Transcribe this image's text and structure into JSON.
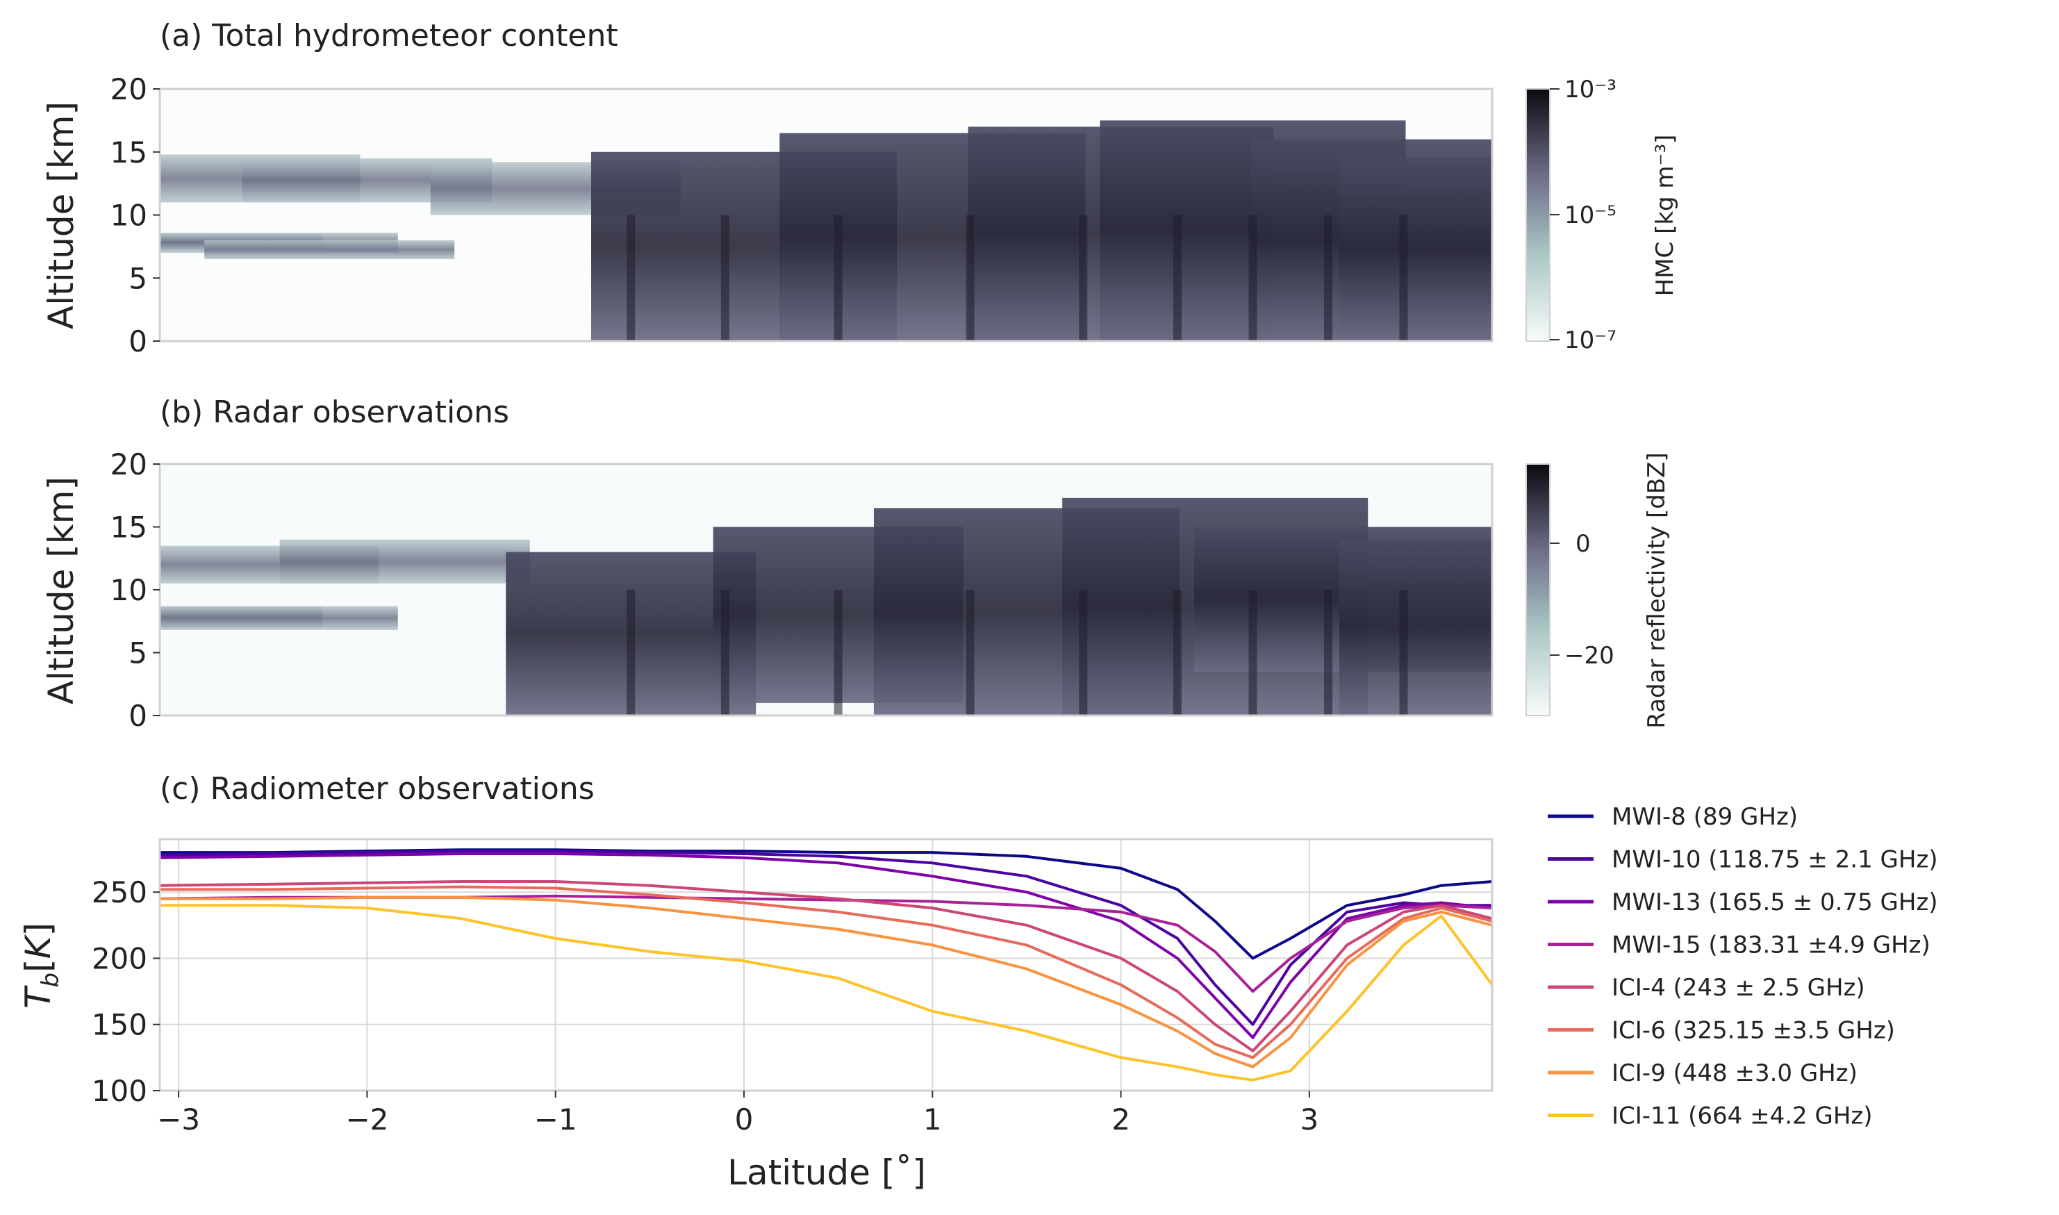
{
  "chart_data": [
    {
      "type": "heatmap",
      "title": "(a) Total hydrometeor content",
      "ylabel": "Altitude [km]",
      "ylim": [
        0,
        20
      ],
      "yticks": [
        "0",
        "5",
        "10",
        "15",
        "20"
      ],
      "xlim": [
        -3.1,
        3.97
      ],
      "colorbar": {
        "label": "HMC [kg m⁻³]",
        "ticks": [
          "10⁻³",
          "10⁻⁵",
          "10⁻⁷"
        ],
        "scale": "log",
        "colormap": "bone_r"
      },
      "cloud_profile": [
        {
          "lat": -2.9,
          "bottom": 7.3,
          "top": 8.5
        },
        {
          "lat": -2.5,
          "bottom": 7.0,
          "top": 8.6
        },
        {
          "lat": -2.2,
          "bottom": 6.5,
          "top": 8.0
        },
        {
          "lat": -2.7,
          "bottom": 11.0,
          "top": 14.8
        },
        {
          "lat": -2.0,
          "bottom": 11.0,
          "top": 14.5
        },
        {
          "lat": -1.0,
          "bottom": 10.0,
          "top": 14.2
        },
        {
          "lat": 0.0,
          "bottom": 0.0,
          "top": 15.0
        },
        {
          "lat": 1.0,
          "bottom": 0.0,
          "top": 16.5
        },
        {
          "lat": 2.0,
          "bottom": 0.0,
          "top": 17.0
        },
        {
          "lat": 2.7,
          "bottom": 0.0,
          "top": 17.5
        },
        {
          "lat": 3.5,
          "bottom": 0.0,
          "top": 16.0
        },
        {
          "lat": 3.97,
          "bottom": 0.0,
          "top": 14.5
        }
      ]
    },
    {
      "type": "heatmap",
      "title": "(b) Radar observations",
      "ylabel": "Altitude [km]",
      "ylim": [
        0,
        20
      ],
      "yticks": [
        "0",
        "5",
        "10",
        "15",
        "20"
      ],
      "xlim": [
        -3.1,
        3.97
      ],
      "colorbar": {
        "label": "Radar reflectivity [dBZ]",
        "ticks": [
          "0",
          "−20"
        ],
        "range": [
          -30,
          15
        ],
        "colormap": "bone_r"
      },
      "reflectivity_profile": [
        {
          "lat": -2.9,
          "bottom": 7.0,
          "top": 8.7
        },
        {
          "lat": -2.5,
          "bottom": 6.8,
          "top": 8.7
        },
        {
          "lat": -2.6,
          "bottom": 10.5,
          "top": 13.5
        },
        {
          "lat": -1.8,
          "bottom": 10.5,
          "top": 14.0
        },
        {
          "lat": -0.6,
          "bottom": 0.0,
          "top": 13.0
        },
        {
          "lat": 0.5,
          "bottom": 1.0,
          "top": 15.0
        },
        {
          "lat": 1.5,
          "bottom": 0.0,
          "top": 16.5
        },
        {
          "lat": 2.5,
          "bottom": 0.0,
          "top": 17.3
        },
        {
          "lat": 3.2,
          "bottom": 3.5,
          "top": 15.0
        },
        {
          "lat": 3.97,
          "bottom": 0.0,
          "top": 14.0
        }
      ]
    },
    {
      "type": "line",
      "title": "(c) Radiometer observations",
      "xlabel": "Latitude [˚]",
      "ylabel": "T_b[K]",
      "xlim": [
        -3.1,
        3.97
      ],
      "ylim": [
        100,
        290
      ],
      "xticks": [
        "−3",
        "−2",
        "−1",
        "0",
        "1",
        "2",
        "3"
      ],
      "yticks": [
        "100",
        "150",
        "200",
        "250"
      ],
      "grid": true,
      "legend_position": "right",
      "x": [
        -3.1,
        -2.5,
        -2.0,
        -1.5,
        -1.0,
        -0.5,
        0.0,
        0.5,
        1.0,
        1.5,
        2.0,
        2.3,
        2.5,
        2.7,
        2.9,
        3.2,
        3.5,
        3.7,
        3.97
      ],
      "series": [
        {
          "name": "MWI-8 (89 GHz)",
          "color": "#0d0887",
          "values": [
            280,
            280,
            281,
            282,
            282,
            281,
            281,
            280,
            280,
            277,
            268,
            252,
            228,
            200,
            215,
            240,
            248,
            255,
            258
          ]
        },
        {
          "name": "MWI-10 (118.75 ± 2.1 GHz)",
          "color": "#4b03a1",
          "values": [
            278,
            279,
            280,
            281,
            281,
            280,
            279,
            277,
            272,
            262,
            240,
            215,
            180,
            150,
            195,
            235,
            242,
            240,
            240
          ]
        },
        {
          "name": "MWI-13 (165.5 ± 0.75 GHz)",
          "color": "#7d03a8",
          "values": [
            276,
            277,
            278,
            279,
            279,
            278,
            276,
            272,
            262,
            250,
            228,
            200,
            170,
            140,
            182,
            230,
            240,
            242,
            238
          ]
        },
        {
          "name": "MWI-15 (183.31 ±4.9 GHz)",
          "color": "#a82296",
          "values": [
            245,
            246,
            246,
            246,
            247,
            246,
            245,
            244,
            243,
            240,
            235,
            225,
            205,
            175,
            200,
            228,
            238,
            240,
            238
          ]
        },
        {
          "name": "ICI-4 (243 ± 2.5 GHz)",
          "color": "#cb4679",
          "values": [
            255,
            256,
            257,
            258,
            258,
            255,
            250,
            245,
            238,
            225,
            200,
            175,
            150,
            130,
            160,
            210,
            235,
            240,
            230
          ]
        },
        {
          "name": "ICI-6 (325.15 ±3.5 GHz)",
          "color": "#e56b5d",
          "values": [
            252,
            252,
            253,
            254,
            253,
            248,
            242,
            235,
            225,
            210,
            180,
            155,
            135,
            125,
            150,
            200,
            230,
            238,
            228
          ]
        },
        {
          "name": "ICI-9 (448 ±3.0 GHz)",
          "color": "#f89441",
          "values": [
            245,
            245,
            246,
            246,
            244,
            238,
            230,
            222,
            210,
            192,
            165,
            145,
            128,
            118,
            140,
            195,
            228,
            235,
            225
          ]
        },
        {
          "name": "ICI-11 (664 ±4.2 GHz)",
          "color": "#fdc328",
          "values": [
            240,
            240,
            238,
            230,
            215,
            205,
            198,
            185,
            160,
            145,
            125,
            118,
            112,
            108,
            115,
            160,
            210,
            232,
            180
          ]
        }
      ]
    }
  ]
}
